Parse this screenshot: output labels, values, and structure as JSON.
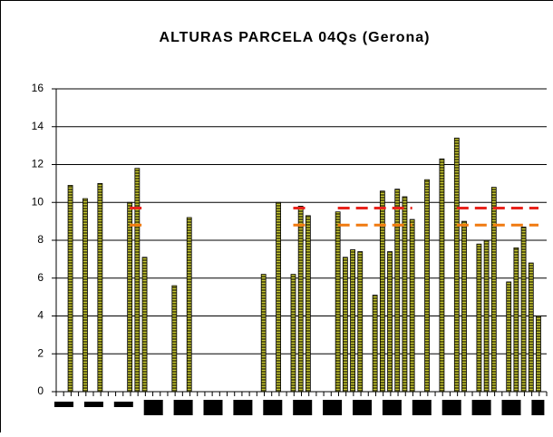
{
  "chart_data": {
    "type": "bar",
    "title": "ALTURAS PARCELA 04Qs (Gerona)",
    "categories": [
      null,
      null,
      null,
      null,
      null,
      null,
      null,
      null,
      null,
      null,
      null,
      null,
      null,
      null,
      null,
      null,
      null,
      null,
      null,
      null,
      null,
      null,
      null,
      null,
      null,
      null,
      null,
      null,
      null,
      null,
      null,
      null,
      null,
      null,
      null,
      null,
      null,
      null,
      null,
      null,
      null,
      null,
      null,
      null,
      null,
      null,
      null,
      null,
      null,
      null,
      null,
      null,
      null,
      null,
      null,
      null,
      null,
      null,
      null,
      null,
      null,
      null,
      null,
      null,
      null,
      null
    ],
    "series": [
      {
        "type": "bar",
        "color": "#5c5c14",
        "values": [
          null,
          10.9,
          null,
          10.2,
          null,
          11.0,
          null,
          null,
          null,
          10.0,
          11.8,
          7.1,
          null,
          null,
          null,
          5.6,
          null,
          9.2,
          null,
          null,
          null,
          null,
          null,
          null,
          null,
          null,
          null,
          6.2,
          null,
          10.0,
          null,
          6.2,
          9.8,
          9.3,
          null,
          null,
          null,
          9.5,
          7.1,
          7.5,
          7.4,
          null,
          5.1,
          10.6,
          7.4,
          10.7,
          10.3,
          9.1,
          null,
          11.2,
          null,
          12.3,
          null,
          13.4,
          9.0,
          null,
          7.8,
          8.0,
          10.8,
          null,
          5.8,
          7.6,
          8.7,
          6.8,
          4.0,
          null
        ]
      },
      {
        "type": "line",
        "color": "#e8231c",
        "values": [
          null,
          null,
          null,
          null,
          null,
          null,
          null,
          null,
          null,
          9.7,
          9.7,
          9.7,
          null,
          null,
          null,
          null,
          null,
          null,
          null,
          null,
          null,
          null,
          null,
          null,
          null,
          null,
          null,
          null,
          null,
          null,
          null,
          9.7,
          9.7,
          9.7,
          null,
          null,
          null,
          9.7,
          9.7,
          9.7,
          9.7,
          9.7,
          9.7,
          9.7,
          9.7,
          9.7,
          9.7,
          9.7,
          null,
          null,
          null,
          null,
          null,
          9.7,
          9.7,
          9.7,
          9.7,
          9.7,
          9.7,
          9.7,
          9.7,
          9.7,
          9.7,
          9.7,
          9.7,
          null
        ]
      },
      {
        "type": "line",
        "color": "#f07a10",
        "values": [
          null,
          null,
          null,
          null,
          null,
          null,
          null,
          null,
          null,
          8.8,
          8.8,
          8.8,
          null,
          null,
          null,
          null,
          null,
          null,
          null,
          null,
          null,
          null,
          null,
          null,
          null,
          null,
          null,
          null,
          null,
          null,
          null,
          8.8,
          8.8,
          8.8,
          null,
          null,
          null,
          8.8,
          8.8,
          8.8,
          8.8,
          8.8,
          8.8,
          8.8,
          8.8,
          8.8,
          8.8,
          8.8,
          null,
          null,
          null,
          null,
          null,
          8.8,
          8.8,
          8.8,
          8.8,
          8.8,
          8.8,
          8.8,
          8.8,
          8.8,
          8.8,
          8.8,
          8.8,
          null
        ]
      }
    ],
    "ylim": [
      0,
      16
    ],
    "yticks": [
      0,
      2,
      4,
      6,
      8,
      10,
      12,
      14,
      16
    ],
    "grid": true
  }
}
